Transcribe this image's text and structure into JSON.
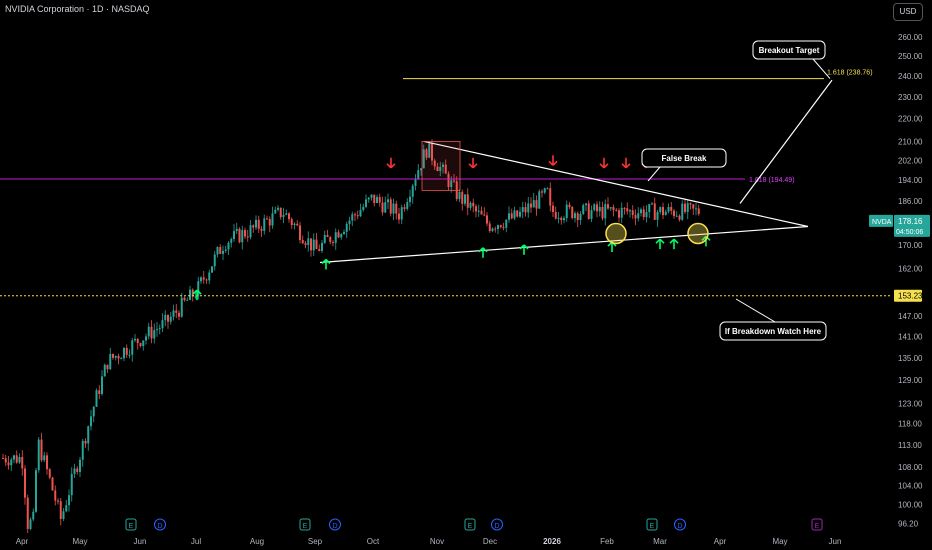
{
  "header": {
    "title": "NVIDIA Corporation · 1D · NASDAQ",
    "currency": "USD"
  },
  "colors": {
    "up": "#26a69a",
    "down": "#ef5350",
    "trendline": "#ffffff",
    "fib": "#c41bd6",
    "target_line": "#f5e050",
    "support_dotted": "#f5e050",
    "marker_up": "#00ff66",
    "marker_down": "#ff3333"
  },
  "chart_data": {
    "type": "candlestick",
    "symbol": "NVDA",
    "y_ticks": [
      "260.00",
      "250.00",
      "240.00",
      "230.00",
      "220.00",
      "210.00",
      "202.00",
      "194.00",
      "186.00",
      "178.00",
      "170.00",
      "162.00",
      "153.23",
      "147.00",
      "141.00",
      "135.00",
      "129.00",
      "123.00",
      "118.00",
      "113.00",
      "108.00",
      "104.00",
      "100.00",
      "96.20"
    ],
    "x_ticks": [
      "Apr",
      "May",
      "Jun",
      "Jul",
      "Aug",
      "Sep",
      "Oct",
      "Nov",
      "Dec",
      "2026",
      "Feb",
      "Mar",
      "Apr",
      "May",
      "Jun"
    ],
    "y_scale": "log",
    "ylim": [
      94,
      268
    ],
    "last_price": {
      "label": "NVDA",
      "value": "178.16",
      "countdown": "04:50:06"
    },
    "levels": [
      {
        "label": "1.618 (194.49)",
        "value": 194.49,
        "kind": "fib"
      },
      {
        "label": "1.618 (238.76)",
        "value": 238.76,
        "kind": "target"
      },
      {
        "label": "153.23",
        "value": 153.23,
        "kind": "support"
      }
    ],
    "annotations": [
      {
        "text": "Breakout Target"
      },
      {
        "text": "False Break"
      },
      {
        "text": "If Breakdown Watch Here"
      }
    ],
    "event_badges": [
      "E",
      "D",
      "E",
      "D",
      "E",
      "D",
      "E",
      "D",
      "E"
    ],
    "series": [
      {
        "date": "Apr 1",
        "close": 110
      },
      {
        "date": "Apr 4",
        "close": 96
      },
      {
        "date": "Apr 7",
        "close": 97
      },
      {
        "date": "Apr 9",
        "close": 114
      },
      {
        "date": "Apr 21",
        "close": 97
      },
      {
        "date": "May 1",
        "close": 111
      },
      {
        "date": "May 15",
        "close": 134
      },
      {
        "date": "Jun 1",
        "close": 140
      },
      {
        "date": "Jun 15",
        "close": 145
      },
      {
        "date": "Jul 1",
        "close": 155
      },
      {
        "date": "Jul 15",
        "close": 171
      },
      {
        "date": "Aug 1",
        "close": 176
      },
      {
        "date": "Aug 15",
        "close": 182
      },
      {
        "date": "Sep 2",
        "close": 168
      },
      {
        "date": "Sep 15",
        "close": 176
      },
      {
        "date": "Oct 1",
        "close": 187
      },
      {
        "date": "Oct 15",
        "close": 181
      },
      {
        "date": "Oct 29",
        "close": 207
      },
      {
        "date": "Nov 15",
        "close": 188
      },
      {
        "date": "Dec 1",
        "close": 177
      },
      {
        "date": "Dec 15",
        "close": 180
      },
      {
        "date": "2026-01-05",
        "close": 189
      },
      {
        "date": "Jan 20",
        "close": 182
      },
      {
        "date": "Feb 2",
        "close": 190
      },
      {
        "date": "Feb 15",
        "close": 186
      },
      {
        "date": "Mar 1",
        "close": 178
      },
      {
        "date": "Mar 16",
        "close": 178.16
      }
    ]
  }
}
